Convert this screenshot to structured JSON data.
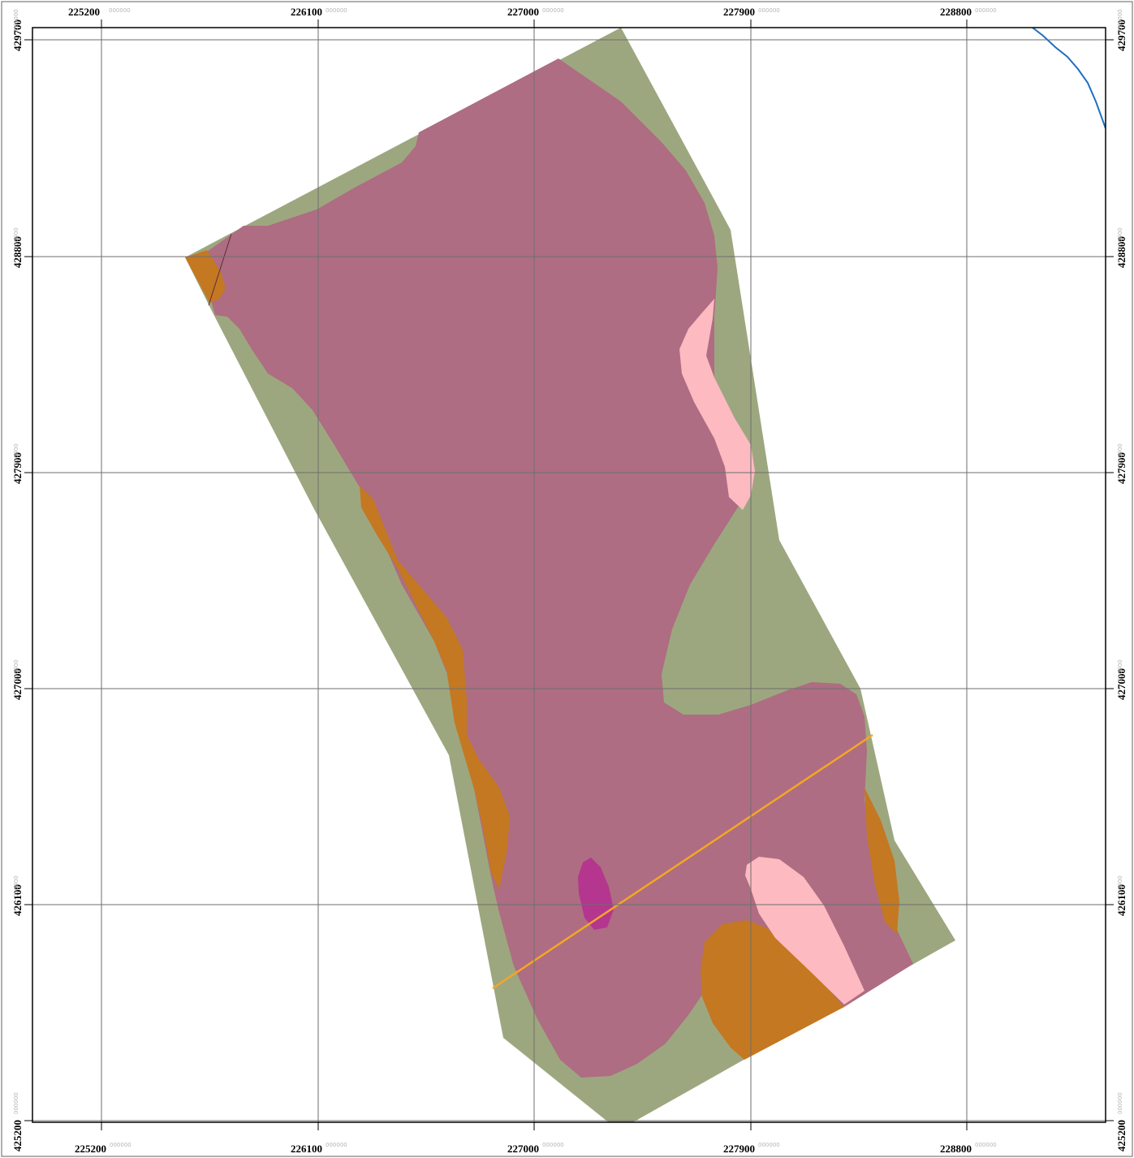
{
  "map": {
    "colors": {
      "background": "#ffffff",
      "outer_frame": "#606060",
      "inner_frame": "#000000",
      "grid": "#6e6e6e",
      "unit_green": "#9da77f",
      "unit_mauve": "#ae6d82",
      "unit_orange": "#c47822",
      "unit_pink": "#fdbac0",
      "unit_magenta": "#b4368f",
      "fault_line": "#f5a623",
      "river": "#1f6fc2",
      "contact_line": "#5a2b3b"
    },
    "x_ticks": [
      {
        "label": "225200",
        "suffix": "000000"
      },
      {
        "label": "226100",
        "suffix": "000000"
      },
      {
        "label": "227000",
        "suffix": "000000"
      },
      {
        "label": "227900",
        "suffix": "000000"
      },
      {
        "label": "228800",
        "suffix": "000000"
      }
    ],
    "y_ticks": [
      {
        "label": "429700",
        "suffix": "000000"
      },
      {
        "label": "428800",
        "suffix": "000000"
      },
      {
        "label": "427900",
        "suffix": "000000"
      },
      {
        "label": "427000",
        "suffix": "000000"
      },
      {
        "label": "426100",
        "suffix": "000000"
      },
      {
        "label": "425200",
        "suffix": "000000"
      }
    ],
    "layers": [
      {
        "name": "unit-green-outcrop",
        "color_key": "unit_green"
      },
      {
        "name": "unit-mauve-outcrop",
        "color_key": "unit_mauve"
      },
      {
        "name": "unit-orange-outcrop",
        "color_key": "unit_orange"
      },
      {
        "name": "unit-pink-outcrop",
        "color_key": "unit_pink"
      },
      {
        "name": "unit-magenta-outcrop",
        "color_key": "unit_magenta"
      },
      {
        "name": "fault-line",
        "color_key": "fault_line"
      },
      {
        "name": "river",
        "color_key": "river"
      }
    ]
  }
}
